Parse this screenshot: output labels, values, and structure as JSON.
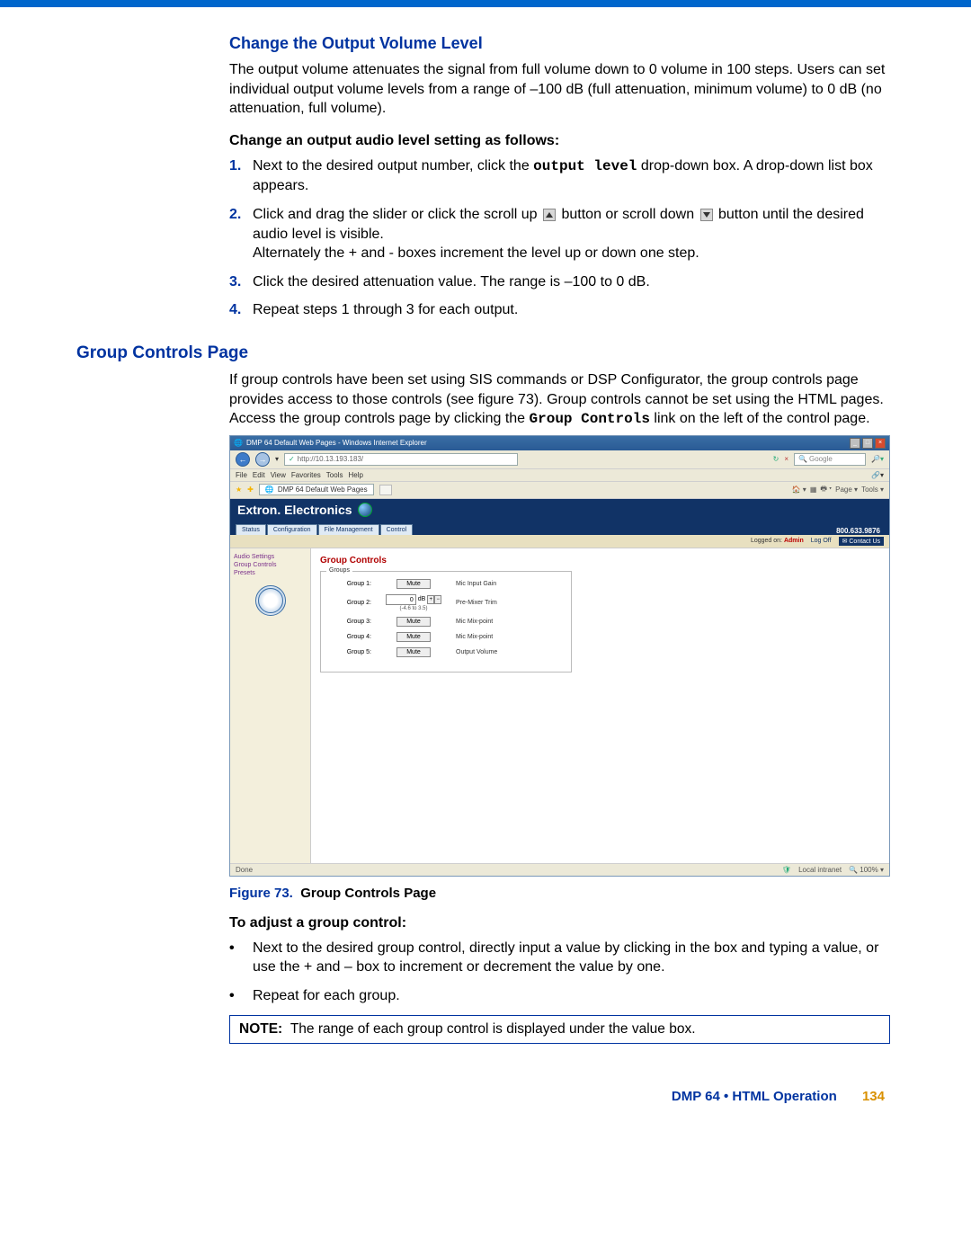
{
  "colors": {
    "heading_blue": "#0033a0",
    "link_red": "#b00000",
    "page_orange": "#d99000",
    "banner_navy": "#113366",
    "topbar": "#0066cc"
  },
  "section1": {
    "title": "Change the Output Volume Level",
    "para": "The output volume attenuates the signal from full volume down to 0 volume in 100 steps. Users can set individual output volume levels from a range of –100 dB (full attenuation, minimum volume) to 0 dB (no attenuation, full volume).",
    "subhead": "Change an output audio level setting as follows:",
    "step1_a": "Next to the desired output number, click the ",
    "step1_mono": "output level",
    "step1_b": " drop-down box. A drop-down list box appears.",
    "step2_a": "Click and drag the slider or click the scroll up ",
    "step2_b": " button or scroll down ",
    "step2_c": " button until the desired audio level is visible.",
    "step2_d": "Alternately the + and - boxes increment the level up or down one step.",
    "step3": "Click the desired attenuation value. The range is –100 to 0 dB.",
    "step4": "Repeat steps 1 through 3 for each output.",
    "nums": {
      "n1": "1.",
      "n2": "2.",
      "n3": "3.",
      "n4": "4."
    }
  },
  "section2": {
    "title": "Group Controls Page",
    "para_a": "If group controls have been set using SIS commands or DSP Configurator, the group controls page provides access to those controls (see figure 73). Group controls cannot be set using the HTML pages. Access the group controls page by clicking the ",
    "para_mono": "Group Controls",
    "para_b": " link on the left of the control page."
  },
  "screenshot": {
    "window_title": "DMP 64 Default Web Pages - Windows Internet Explorer",
    "url": "http://10.13.193.183/",
    "search_placeholder": "Google",
    "menu": {
      "file": "File",
      "edit": "Edit",
      "view": "View",
      "favorites": "Favorites",
      "tools": "Tools",
      "help": "Help"
    },
    "tab_title": "DMP 64 Default Web Pages",
    "toolbar": {
      "page": "Page",
      "tools": "Tools"
    },
    "brand": "Extron. Electronics",
    "ext_tabs": [
      "Status",
      "Configuration",
      "File Management",
      "Control"
    ],
    "phone": "800.633.9876",
    "logged_label": "Logged on:",
    "logged_user": "Admin",
    "logoff": "Log Off",
    "contact": "Contact Us",
    "sidebar": {
      "audio": "Audio Settings",
      "group": "Group Controls",
      "presets": "Presets"
    },
    "panel_title": "Group Controls",
    "groups_legend": "Groups",
    "mute_label": "Mute",
    "db_unit": "dB",
    "rows": [
      {
        "label": "Group 1:",
        "type": "mute",
        "desc": "Mic Input Gain"
      },
      {
        "label": "Group 2:",
        "type": "db",
        "value": "0",
        "range": "(-4.6 to 3.5)",
        "desc": "Pre-Mixer Trim"
      },
      {
        "label": "Group 3:",
        "type": "mute",
        "desc": "Mic Mix-point"
      },
      {
        "label": "Group 4:",
        "type": "mute",
        "desc": "Mic Mix-point"
      },
      {
        "label": "Group 5:",
        "type": "mute",
        "desc": "Output Volume"
      }
    ],
    "status_done": "Done",
    "zone": "Local intranet",
    "zoom": "100%"
  },
  "figure": {
    "num": "Figure 73.",
    "title": "Group Controls Page"
  },
  "adjust": {
    "subhead": "To adjust a group control:",
    "b1": "Next to the desired group control, directly input a value by clicking in the box and typing a value, or use the + and – box to increment or decrement the value by one.",
    "b2": "Repeat for each group."
  },
  "note": {
    "label": "NOTE:",
    "text": "The range of each group control is displayed under the value box."
  },
  "footer": {
    "title": "DMP 64 • HTML Operation",
    "page": "134"
  }
}
